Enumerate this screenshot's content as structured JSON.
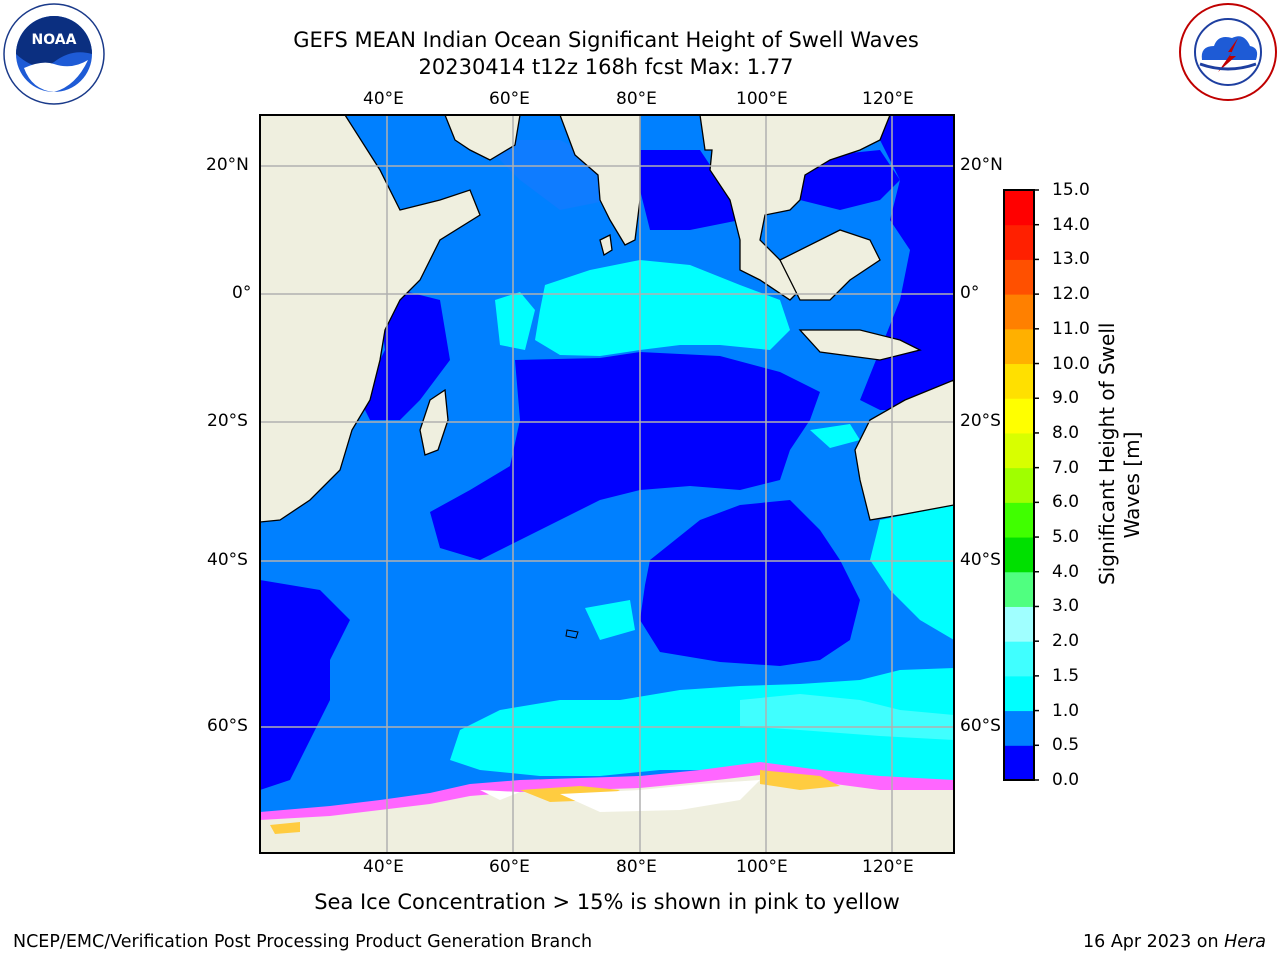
{
  "header": {
    "title_line1": "GEFS MEAN Indian Ocean Significant Height of Swell Waves",
    "title_line2": "20230414 t12z 168h fcst   Max: 1.77"
  },
  "logos": {
    "noara_text": "NOAA",
    "nws_text": "NATIONAL WEATHER SERVICE"
  },
  "map": {
    "lon_labels": [
      "40°E",
      "60°E",
      "80°E",
      "100°E",
      "120°E"
    ],
    "lat_labels": [
      "20°N",
      "0°",
      "20°S",
      "40°S",
      "60°S"
    ],
    "land_color": "#efefdf",
    "ice_color": "#ff66ff"
  },
  "colorbar": {
    "title_line1": "Significant Height of Swell",
    "title_line2": "Waves [m]",
    "ticks": [
      "0.0",
      "0.5",
      "1.0",
      "1.5",
      "2.0",
      "3.0",
      "4.0",
      "5.0",
      "6.0",
      "7.0",
      "8.0",
      "9.0",
      "10.0",
      "11.0",
      "12.0",
      "13.0",
      "14.0",
      "15.0"
    ],
    "colors": [
      "#0000ff",
      "#0080ff",
      "#00ffff",
      "#40ffff",
      "#a0ffff",
      "#50ff80",
      "#00e000",
      "#40ff00",
      "#a0ff00",
      "#d8ff00",
      "#ffff00",
      "#ffe000",
      "#ffb000",
      "#ff8000",
      "#ff5000",
      "#ff2000",
      "#ff0000"
    ]
  },
  "notes": {
    "ice_note": "Sea Ice Concentration > 15% is shown in pink to yellow"
  },
  "footer": {
    "left": "NCEP/EMC/Verification Post Processing Product Generation Branch",
    "right_date": "16 Apr 2023 on ",
    "right_host": "Hera"
  }
}
